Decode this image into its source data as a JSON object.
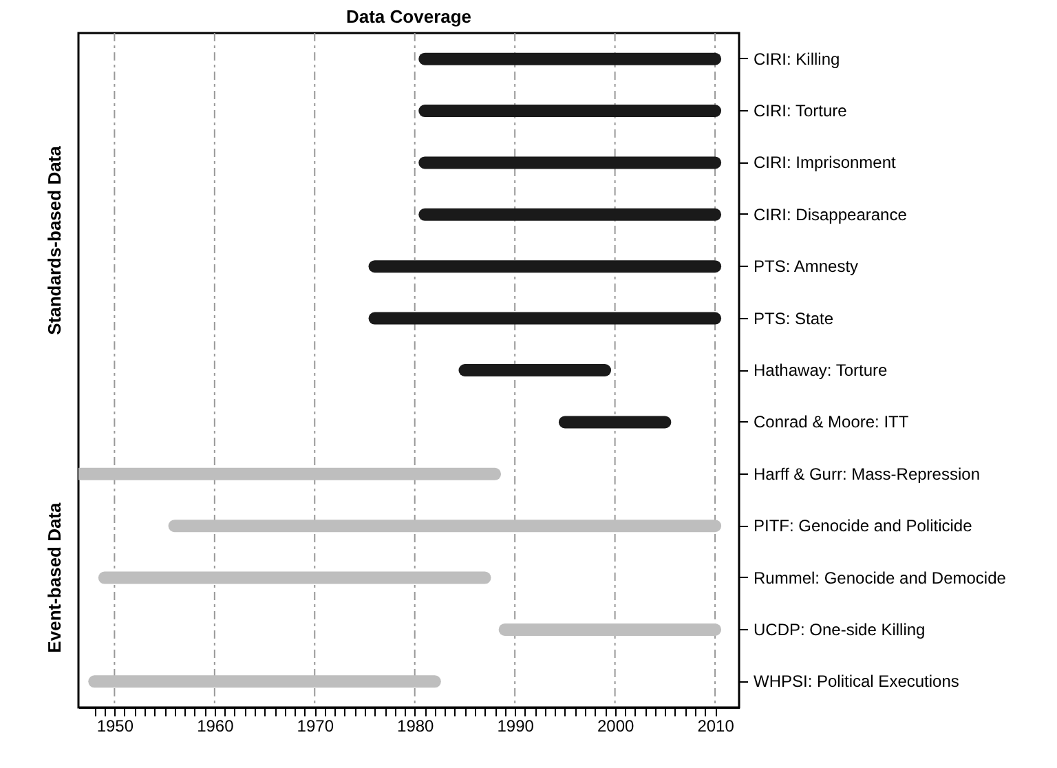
{
  "chart_data": {
    "type": "bar",
    "orientation": "horizontal",
    "title": "Data Coverage",
    "categories": [
      "CIRI: Killing",
      "CIRI: Torture",
      "CIRI: Imprisonment",
      "CIRI: Disappearance",
      "PTS: Amnesty",
      "PTS: State",
      "Hathaway: Torture",
      "Conrad & Moore: ITT",
      "Harff & Gurr: Mass-Repression",
      "PITF: Genocide and Politicide",
      "Rummel: Genocide and Democide",
      "UCDP: One-side Killing",
      "WHPSI: Political Executions"
    ],
    "series": [
      {
        "color": "#1a1a1a",
        "base": [
          1981,
          1981,
          1981,
          1981,
          1976,
          1976,
          1985,
          1995,
          null,
          null,
          null,
          null,
          null
        ],
        "values": [
          29,
          29,
          29,
          29,
          34,
          34,
          14,
          10,
          null,
          null,
          null,
          null,
          null
        ]
      },
      {
        "color": "#bebebe",
        "base": [
          null,
          null,
          null,
          null,
          null,
          null,
          null,
          null,
          1946.4,
          1956,
          1949,
          1989,
          1948
        ],
        "values": [
          null,
          null,
          null,
          null,
          null,
          null,
          null,
          null,
          41.6,
          54,
          38,
          21,
          34
        ]
      }
    ],
    "xlim": [
      1946.4,
      2012.4
    ],
    "xticks": [
      {
        "value": 1948,
        "label": null
      },
      {
        "value": 1949,
        "label": null
      },
      1950,
      {
        "value": 1951,
        "label": null
      },
      {
        "value": 1952,
        "label": null
      },
      {
        "value": 1953,
        "label": null
      },
      {
        "value": 1954,
        "label": null
      },
      {
        "value": 1955,
        "label": null
      },
      {
        "value": 1956,
        "label": null
      },
      {
        "value": 1957,
        "label": null
      },
      {
        "value": 1958,
        "label": null
      },
      {
        "value": 1959,
        "label": null
      },
      1960,
      {
        "value": 1961,
        "label": null
      },
      {
        "value": 1962,
        "label": null
      },
      {
        "value": 1963,
        "label": null
      },
      {
        "value": 1964,
        "label": null
      },
      {
        "value": 1965,
        "label": null
      },
      {
        "value": 1966,
        "label": null
      },
      {
        "value": 1967,
        "label": null
      },
      {
        "value": 1968,
        "label": null
      },
      {
        "value": 1969,
        "label": null
      },
      1970,
      {
        "value": 1971,
        "label": null
      },
      {
        "value": 1972,
        "label": null
      },
      {
        "value": 1973,
        "label": null
      },
      {
        "value": 1974,
        "label": null
      },
      {
        "value": 1975,
        "label": null
      },
      {
        "value": 1976,
        "label": null
      },
      {
        "value": 1977,
        "label": null
      },
      {
        "value": 1978,
        "label": null
      },
      {
        "value": 1979,
        "label": null
      },
      1980,
      {
        "value": 1981,
        "label": null
      },
      {
        "value": 1982,
        "label": null
      },
      {
        "value": 1983,
        "label": null
      },
      {
        "value": 1984,
        "label": null
      },
      {
        "value": 1985,
        "label": null
      },
      {
        "value": 1986,
        "label": null
      },
      {
        "value": 1987,
        "label": null
      },
      {
        "value": 1988,
        "label": null
      },
      {
        "value": 1989,
        "label": null
      },
      1990,
      {
        "value": 1991,
        "label": null
      },
      {
        "value": 1992,
        "label": null
      },
      {
        "value": 1993,
        "label": null
      },
      {
        "value": 1994,
        "label": null
      },
      {
        "value": 1995,
        "label": null
      },
      {
        "value": 1996,
        "label": null
      },
      {
        "value": 1997,
        "label": null
      },
      {
        "value": 1998,
        "label": null
      },
      {
        "value": 1999,
        "label": null
      },
      2000,
      {
        "value": 2001,
        "label": null
      },
      {
        "value": 2002,
        "label": null
      },
      {
        "value": 2003,
        "label": null
      },
      {
        "value": 2004,
        "label": null
      },
      {
        "value": 2005,
        "label": null
      },
      {
        "value": 2006,
        "label": null
      },
      {
        "value": 2007,
        "label": null
      },
      {
        "value": 2008,
        "label": null
      },
      {
        "value": 2009,
        "label": null
      },
      2010
    ],
    "annotations": [
      "Standards-based Data",
      "Event-based Data"
    ],
    "grid": "x",
    "legend": false
  }
}
